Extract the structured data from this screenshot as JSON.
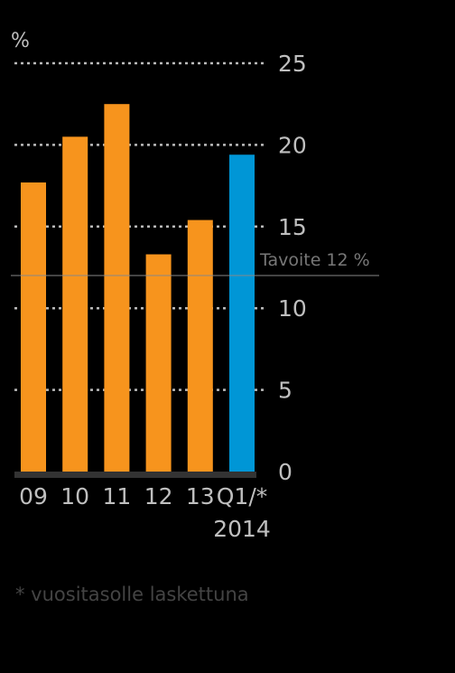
{
  "chart_data": {
    "type": "bar",
    "ylabel": "%",
    "categories": [
      "09",
      "10",
      "11",
      "12",
      "13",
      "Q1/*"
    ],
    "category_sublabels": [
      "",
      "",
      "",
      "",
      "",
      "2014"
    ],
    "values": [
      17.7,
      20.5,
      22.5,
      13.3,
      15.4,
      19.4
    ],
    "bar_colors": [
      "#f7941d",
      "#f7941d",
      "#f7941d",
      "#f7941d",
      "#f7941d",
      "#0096d6"
    ],
    "ylim": [
      0,
      25
    ],
    "yticks": [
      "0",
      "5",
      "10",
      "15",
      "20",
      "25"
    ],
    "grid": true,
    "target": {
      "label": "Tavoite 12 %",
      "value": 12
    },
    "footnote": "* vuositasolle laskettuna"
  },
  "colors": {
    "background": "#000000",
    "gridline": "#bbbbbb",
    "target_line": "#888888",
    "axis_text": "#bfbfbf",
    "target_text": "#777777",
    "footnote_text": "#444444",
    "baseline": "#333333"
  }
}
